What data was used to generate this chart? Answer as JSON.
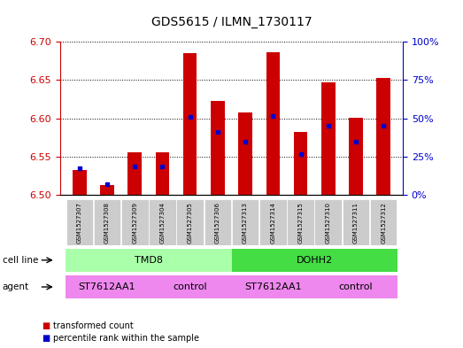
{
  "title": "GDS5615 / ILMN_1730117",
  "samples": [
    "GSM1527307",
    "GSM1527308",
    "GSM1527309",
    "GSM1527304",
    "GSM1527305",
    "GSM1527306",
    "GSM1527313",
    "GSM1527314",
    "GSM1527315",
    "GSM1527310",
    "GSM1527311",
    "GSM1527312"
  ],
  "bar_values": [
    6.533,
    6.513,
    6.556,
    6.556,
    6.685,
    6.623,
    6.608,
    6.686,
    6.582,
    6.647,
    6.601,
    6.653
  ],
  "bar_bottom": 6.5,
  "blue_dot_values": [
    6.535,
    6.514,
    6.537,
    6.537,
    6.602,
    6.582,
    6.57,
    6.603,
    6.553,
    6.59,
    6.569,
    6.59
  ],
  "ylim_left": [
    6.5,
    6.7
  ],
  "ylim_right": [
    0,
    100
  ],
  "yticks_left": [
    6.5,
    6.55,
    6.6,
    6.65,
    6.7
  ],
  "yticks_right": [
    0,
    25,
    50,
    75,
    100
  ],
  "bar_color": "#cc0000",
  "dot_color": "#0000cc",
  "cell_line_groups": [
    {
      "label": "TMD8",
      "start": 0,
      "end": 6,
      "color": "#aaffaa"
    },
    {
      "label": "DOHH2",
      "start": 6,
      "end": 12,
      "color": "#44dd44"
    }
  ],
  "agent_groups": [
    {
      "label": "ST7612AA1",
      "start": 0,
      "end": 3
    },
    {
      "label": "control",
      "start": 3,
      "end": 6
    },
    {
      "label": "ST7612AA1",
      "start": 6,
      "end": 9
    },
    {
      "label": "control",
      "start": 9,
      "end": 12
    }
  ],
  "agent_color": "#ee88ee",
  "tick_color_left": "#cc0000",
  "tick_color_right": "#0000cc",
  "grid_color": "black",
  "bar_width": 0.5,
  "cell_line_label": "cell line",
  "agent_label": "agent",
  "legend_items": [
    "transformed count",
    "percentile rank within the sample"
  ],
  "sample_bg_color": "#cccccc"
}
